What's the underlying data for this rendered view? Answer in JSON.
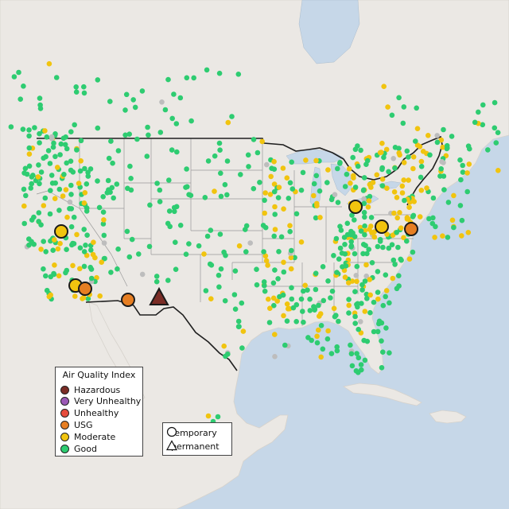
{
  "colors": {
    "water": "#c6d7e8",
    "land": "#ebe8e4",
    "us_border": "#1f1f1f",
    "state_border": "#9a9a9a",
    "good": "#2ecc71",
    "moderate": "#f1c40f",
    "usg": "#e67e22",
    "unhealthy": "#e74c3c",
    "very_unhealthy": "#9b59b6",
    "hazardous": "#7b2d26",
    "no_data": "#bdbdbd"
  },
  "legend": {
    "title": "Air Quality Index",
    "items": [
      {
        "label": "Hazardous",
        "color": "#7b2d26"
      },
      {
        "label": "Very Unhealthy",
        "color": "#9b59b6"
      },
      {
        "label": "Unhealthy",
        "color": "#e74c3c"
      },
      {
        "label": "USG",
        "color": "#e67e22"
      },
      {
        "label": "Moderate",
        "color": "#f1c40f"
      },
      {
        "label": "Good",
        "color": "#2ecc71"
      }
    ]
  },
  "shape_legend": {
    "items": [
      {
        "label": "temporary",
        "shape": "circle"
      },
      {
        "label": "permanent",
        "shape": "triangle"
      }
    ]
  },
  "highlighted_sites": [
    {
      "category": "moderate",
      "shape": "circle",
      "region": "Northern California"
    },
    {
      "category": "moderate",
      "shape": "circle",
      "region": "Los Angeles"
    },
    {
      "category": "usg",
      "shape": "circle",
      "region": "Inland Empire, California"
    },
    {
      "category": "usg",
      "shape": "circle",
      "region": "Phoenix, Arizona"
    },
    {
      "category": "hazardous",
      "shape": "triangle",
      "region": "Southern New Mexico"
    },
    {
      "category": "moderate",
      "shape": "circle",
      "region": "Detroit, Michigan"
    },
    {
      "category": "moderate",
      "shape": "circle",
      "region": "Pittsburgh, Pennsylvania"
    },
    {
      "category": "usg",
      "shape": "circle",
      "region": "Washington DC / Baltimore"
    }
  ],
  "monitors_summary": {
    "good": "majority",
    "moderate": "clustered in Midwest, Northeast, California",
    "no_data": "scattered gray"
  }
}
